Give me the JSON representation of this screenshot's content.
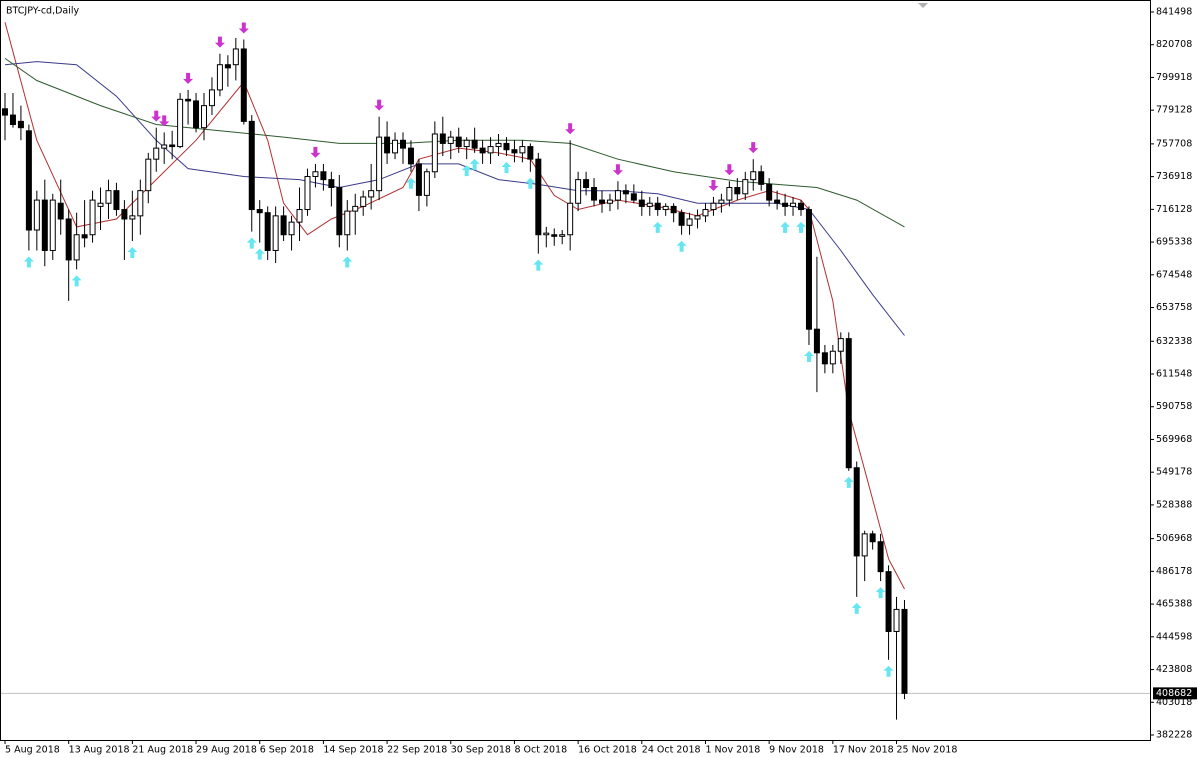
{
  "chart_data": {
    "type": "candlestick",
    "title": "BTCJPY-cd,Daily",
    "categories": [
      "5 Aug 2018",
      null,
      null,
      null,
      null,
      null,
      null,
      null,
      "13 Aug 2018",
      null,
      null,
      null,
      null,
      null,
      null,
      null,
      "21 Aug 2018",
      null,
      null,
      null,
      null,
      null,
      null,
      null,
      "29 Aug 2018",
      null,
      null,
      null,
      null,
      null,
      null,
      null,
      "6 Sep 2018",
      null,
      null,
      null,
      null,
      null,
      null,
      null,
      "14 Sep 2018",
      null,
      null,
      null,
      null,
      null,
      null,
      null,
      "22 Sep 2018",
      null,
      null,
      null,
      null,
      null,
      null,
      null,
      "30 Sep 2018",
      null,
      null,
      null,
      null,
      null,
      null,
      null,
      "8 Oct 2018",
      null,
      null,
      null,
      null,
      null,
      null,
      null,
      "16 Oct 2018",
      null,
      null,
      null,
      null,
      null,
      null,
      null,
      "24 Oct 2018",
      null,
      null,
      null,
      null,
      null,
      null,
      null,
      "1 Nov 2018",
      null,
      null,
      null,
      null,
      null,
      null,
      null,
      "9 Nov 2018",
      null,
      null,
      null,
      null,
      null,
      null,
      null,
      "17 Nov 2018",
      null,
      null,
      null,
      null,
      null,
      null,
      null,
      "25 Nov 2018",
      null
    ],
    "open": [
      780000,
      776000,
      772000,
      766000,
      703000,
      722000,
      690000,
      720000,
      710000,
      684000,
      700000,
      700000,
      718000,
      720000,
      728000,
      716000,
      710000,
      712000,
      728000,
      748000,
      755000,
      757000,
      756000,
      786000,
      785000,
      768000,
      782000,
      792000,
      808000,
      808000,
      818000,
      772000,
      716000,
      714000,
      690000,
      712000,
      700000,
      708000,
      716000,
      737000,
      740000,
      735000,
      730000,
      700000,
      715000,
      718000,
      724000,
      728000,
      762000,
      752000,
      760000,
      755000,
      745000,
      725000,
      740000,
      764000,
      758000,
      762000,
      756000,
      760000,
      755000,
      752000,
      756000,
      758000,
      754000,
      752000,
      756000,
      748000,
      700000,
      700000,
      699000,
      700000,
      720000,
      735000,
      730000,
      722000,
      720000,
      722000,
      728000,
      726000,
      722000,
      718000,
      720000,
      716000,
      718000,
      714000,
      706000,
      710000,
      712000,
      716000,
      720000,
      722000,
      730000,
      726000,
      735000,
      740000,
      732000,
      722000,
      720000,
      718000,
      720000,
      716000,
      640000,
      625000,
      618000,
      626000,
      634000,
      552000,
      496000,
      510000,
      505000,
      486000,
      448000,
      462000
    ],
    "high": [
      790000,
      790000,
      782000,
      770000,
      728000,
      735000,
      726000,
      735000,
      716000,
      714000,
      722000,
      728000,
      730000,
      735000,
      733000,
      722000,
      728000,
      735000,
      752000,
      768000,
      765000,
      766000,
      790000,
      792000,
      790000,
      790000,
      800000,
      815000,
      814000,
      825000,
      824000,
      776000,
      722000,
      718000,
      718000,
      718000,
      712000,
      730000,
      742000,
      745000,
      745000,
      740000,
      738000,
      722000,
      726000,
      728000,
      745000,
      775000,
      772000,
      765000,
      765000,
      760000,
      748000,
      742000,
      772000,
      775000,
      766000,
      768000,
      762000,
      768000,
      760000,
      762000,
      764000,
      762000,
      760000,
      760000,
      758000,
      752000,
      705000,
      704000,
      703000,
      760000,
      740000,
      740000,
      736000,
      728000,
      726000,
      734000,
      732000,
      732000,
      728000,
      724000,
      724000,
      720000,
      720000,
      716000,
      714000,
      716000,
      720000,
      724000,
      726000,
      734000,
      736000,
      740000,
      748000,
      744000,
      736000,
      728000,
      726000,
      724000,
      722000,
      718000,
      686000,
      630000,
      630000,
      638000,
      638000,
      556000,
      512000,
      512000,
      510000,
      490000,
      470000,
      468000
    ],
    "low": [
      760000,
      768000,
      760000,
      690000,
      690000,
      680000,
      684000,
      700000,
      658000,
      678000,
      692000,
      695000,
      703000,
      710000,
      712000,
      684000,
      696000,
      700000,
      720000,
      740000,
      745000,
      748000,
      755000,
      770000,
      765000,
      760000,
      776000,
      788000,
      794000,
      798000,
      770000,
      702000,
      695000,
      684000,
      682000,
      696000,
      690000,
      696000,
      712000,
      730000,
      728000,
      718000,
      692000,
      690000,
      700000,
      712000,
      716000,
      722000,
      745000,
      748000,
      745000,
      740000,
      715000,
      718000,
      736000,
      750000,
      748000,
      752000,
      748000,
      752000,
      745000,
      745000,
      750000,
      750000,
      746000,
      746000,
      740000,
      688000,
      692000,
      693000,
      694000,
      690000,
      715000,
      725000,
      718000,
      714000,
      715000,
      716000,
      720000,
      720000,
      712000,
      712000,
      712000,
      712000,
      708000,
      700000,
      700000,
      704000,
      708000,
      712000,
      714000,
      718000,
      722000,
      722000,
      728000,
      728000,
      718000,
      716000,
      712000,
      712000,
      712000,
      630000,
      600000,
      612000,
      612000,
      618000,
      550000,
      470000,
      480000,
      500000,
      480000,
      430000,
      392000,
      405000
    ],
    "close": [
      776000,
      770000,
      768000,
      703000,
      722000,
      690000,
      722000,
      710000,
      684000,
      700000,
      698000,
      722000,
      720000,
      728000,
      716000,
      710000,
      712000,
      728000,
      748000,
      755000,
      757000,
      756000,
      786000,
      785000,
      768000,
      782000,
      792000,
      808000,
      806000,
      818000,
      772000,
      716000,
      714000,
      690000,
      712000,
      700000,
      708000,
      716000,
      737000,
      740000,
      735000,
      730000,
      700000,
      715000,
      718000,
      724000,
      728000,
      762000,
      752000,
      760000,
      755000,
      745000,
      725000,
      740000,
      764000,
      758000,
      762000,
      756000,
      760000,
      755000,
      752000,
      756000,
      758000,
      754000,
      752000,
      756000,
      748000,
      700000,
      701000,
      699000,
      700000,
      720000,
      735000,
      730000,
      722000,
      720000,
      722000,
      728000,
      726000,
      722000,
      718000,
      720000,
      716000,
      718000,
      714000,
      706000,
      710000,
      712000,
      716000,
      720000,
      722000,
      730000,
      726000,
      735000,
      740000,
      732000,
      722000,
      720000,
      718000,
      720000,
      716000,
      640000,
      625000,
      618000,
      626000,
      634000,
      552000,
      496000,
      510000,
      505000,
      486000,
      448000,
      462000,
      408682
    ],
    "up_color": "#ffffff",
    "down_color": "#000000",
    "wick_color": "#000000",
    "series": [
      {
        "color": "#b03030",
        "x": [
          0,
          4,
          9,
          14,
          19,
          24,
          30,
          33,
          35,
          38,
          41,
          45,
          50,
          52,
          57,
          62,
          66,
          69,
          72,
          77,
          82,
          87,
          92,
          96,
          100,
          101,
          104,
          106,
          109,
          111,
          113
        ],
        "values": [
          835000,
          760000,
          705000,
          710000,
          735000,
          760000,
          797000,
          760000,
          720000,
          700000,
          710000,
          718000,
          730000,
          748000,
          755000,
          752000,
          748000,
          725000,
          716000,
          722000,
          718000,
          712000,
          722000,
          728000,
          722000,
          716000,
          658000,
          588000,
          532000,
          494000,
          475000
        ]
      },
      {
        "color": "#3a3a8c",
        "x": [
          0,
          4,
          9,
          14,
          19,
          23,
          30,
          37,
          42,
          47,
          52,
          57,
          62,
          67,
          72,
          77,
          82,
          87,
          92,
          97,
          101,
          105,
          109,
          113
        ],
        "values": [
          808000,
          810000,
          808000,
          788000,
          760000,
          742000,
          737000,
          735000,
          730000,
          735000,
          745000,
          745000,
          735000,
          732000,
          728000,
          728000,
          726000,
          720000,
          720000,
          720000,
          716000,
          690000,
          662000,
          636000
        ]
      },
      {
        "color": "#2e5a2e",
        "x": [
          0,
          4,
          12,
          19,
          27,
          35,
          42,
          50,
          57,
          65,
          71,
          77,
          84,
          92,
          97,
          102,
          107,
          113
        ],
        "values": [
          812000,
          798000,
          782000,
          770000,
          766000,
          762000,
          758000,
          758000,
          760000,
          760000,
          758000,
          748000,
          740000,
          734000,
          732000,
          730000,
          722000,
          705000
        ]
      }
    ],
    "signals": {
      "up": {
        "color": "#66e6f0",
        "x": [
          3,
          9,
          16,
          31,
          32,
          43,
          51,
          58,
          59,
          63,
          66,
          67,
          82,
          85,
          98,
          100,
          101,
          106,
          107,
          110,
          111
        ]
      },
      "down": {
        "color": "#cc33cc",
        "x": [
          19,
          20,
          23,
          27,
          30,
          39,
          47,
          71,
          77,
          89,
          91,
          94
        ]
      }
    },
    "current_price": 408682,
    "ylim": [
      379060,
      848466
    ],
    "yticks": [
      382228,
      403018,
      423808,
      444598,
      465388,
      486178,
      506968,
      528388,
      549178,
      569968,
      590758,
      611548,
      632338,
      653758,
      674548,
      695338,
      716128,
      736918,
      757708,
      779128,
      799918,
      820708,
      841498
    ]
  }
}
